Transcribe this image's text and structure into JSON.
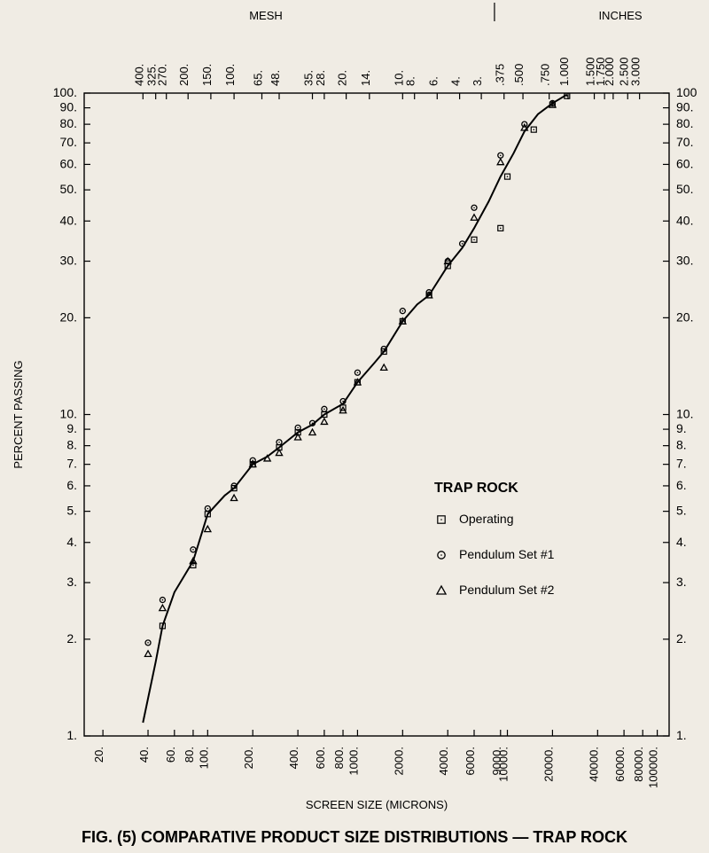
{
  "figure": {
    "caption": "FIG. (5) COMPARATIVE PRODUCT SIZE DISTRIBUTIONS — TRAP ROCK",
    "background_color": "#f0ece4",
    "plot_bg": "#f0ece4",
    "stroke_color": "#000000",
    "xlabel": "SCREEN SIZE (MICRONS)",
    "ylabel": "PERCENT PASSING",
    "top_left_label": "MESH",
    "top_right_label": "INCHES",
    "x_scale": "log",
    "y_scale": "log",
    "xlim": [
      15,
      120000
    ],
    "ylim": [
      1,
      100
    ],
    "x_ticks": [
      20,
      40,
      60,
      80,
      100,
      200,
      400,
      600,
      800,
      1000,
      2000,
      4000,
      6000,
      9000,
      10000,
      20000,
      40000,
      60000,
      80000,
      100000
    ],
    "x_tick_labels": [
      "20.",
      "40.",
      "60.",
      "80.",
      "100.",
      "200.",
      "400.",
      "600.",
      "800.",
      "1000.",
      "2000.",
      "4000.",
      "6000.",
      "9000.",
      "10000.",
      "20000.",
      "40000.",
      "60000.",
      "80000.",
      "100000."
    ],
    "y_ticks_left": [
      1,
      2,
      3,
      4,
      5,
      6,
      7,
      8,
      9,
      10,
      20,
      30,
      40,
      50,
      60,
      70,
      80,
      90,
      100
    ],
    "y_tick_labels_left": [
      "1.",
      "2.",
      "3.",
      "4.",
      "5.",
      "6.",
      "7.",
      "8.",
      "9.",
      "10.",
      "20.",
      "30.",
      "40.",
      "50.",
      "60.",
      "70.",
      "80.",
      "90.",
      "100."
    ],
    "y_ticks_right": [
      1,
      2,
      3,
      4,
      5,
      6,
      7,
      8,
      9,
      10,
      20,
      30,
      40,
      50,
      60,
      70,
      80,
      90,
      100
    ],
    "y_tick_labels_right": [
      "1.",
      "2.",
      "3.",
      "4.",
      "5.",
      "6.",
      "7.",
      "8.",
      "9.",
      "10.",
      "20.",
      "30.",
      "40.",
      "50.",
      "60.",
      "70.",
      "80.",
      "90.",
      "100"
    ],
    "top_mesh_ticks": [
      "400.",
      "325.",
      "270.",
      "200.",
      "150.",
      "100.",
      "65.",
      "48.",
      "35.",
      "28.",
      "20.",
      "14.",
      "10.",
      "8.",
      "6.",
      "4.",
      "3."
    ],
    "top_mesh_positions": [
      37,
      45,
      53,
      74,
      105,
      150,
      230,
      300,
      500,
      600,
      840,
      1200,
      2000,
      2400,
      3400,
      4800,
      6700
    ],
    "top_inches_ticks": [
      ".375",
      ".500",
      ".750",
      "1.000",
      "1.500",
      "1.750",
      "2.000",
      "2.500",
      "3.000"
    ],
    "top_inches_positions": [
      9500,
      12700,
      19000,
      25400,
      38000,
      44500,
      50800,
      63500,
      76200
    ],
    "legend": {
      "title": "TRAP ROCK",
      "items": [
        {
          "marker": "square",
          "label": "Operating"
        },
        {
          "marker": "circle",
          "label": "Pendulum Set #1"
        },
        {
          "marker": "triangle",
          "label": "Pendulum Set #2"
        }
      ]
    },
    "series": {
      "operating": {
        "marker": "square",
        "data": [
          [
            50,
            2.2
          ],
          [
            80,
            3.4
          ],
          [
            100,
            4.9
          ],
          [
            150,
            5.9
          ],
          [
            200,
            7.0
          ],
          [
            300,
            7.9
          ],
          [
            400,
            8.8
          ],
          [
            600,
            10.0
          ],
          [
            800,
            10.5
          ],
          [
            1000,
            12.6
          ],
          [
            1500,
            15.7
          ],
          [
            2000,
            19.5
          ],
          [
            3000,
            23.5
          ],
          [
            4000,
            29.0
          ],
          [
            6000,
            35.0
          ],
          [
            9000,
            38.0
          ],
          [
            10000,
            55.0
          ],
          [
            15000,
            77.0
          ],
          [
            20000,
            92.0
          ],
          [
            25000,
            98.0
          ]
        ]
      },
      "pendulum1": {
        "marker": "circle",
        "data": [
          [
            40,
            1.95
          ],
          [
            50,
            2.65
          ],
          [
            80,
            3.8
          ],
          [
            100,
            5.1
          ],
          [
            150,
            6.0
          ],
          [
            200,
            7.2
          ],
          [
            300,
            8.2
          ],
          [
            400,
            9.1
          ],
          [
            500,
            9.4
          ],
          [
            600,
            10.4
          ],
          [
            800,
            11.0
          ],
          [
            1000,
            13.5
          ],
          [
            1500,
            16.0
          ],
          [
            2000,
            21.0
          ],
          [
            3000,
            24.0
          ],
          [
            4000,
            30.0
          ],
          [
            5000,
            34.0
          ],
          [
            6000,
            44.0
          ],
          [
            9000,
            64.0
          ],
          [
            13000,
            80.0
          ],
          [
            20000,
            93.0
          ]
        ]
      },
      "pendulum2": {
        "marker": "triangle",
        "data": [
          [
            40,
            1.8
          ],
          [
            50,
            2.5
          ],
          [
            80,
            3.5
          ],
          [
            100,
            4.4
          ],
          [
            150,
            5.5
          ],
          [
            200,
            7.0
          ],
          [
            250,
            7.3
          ],
          [
            300,
            7.6
          ],
          [
            400,
            8.5
          ],
          [
            500,
            8.8
          ],
          [
            600,
            9.5
          ],
          [
            800,
            10.3
          ],
          [
            1000,
            12.6
          ],
          [
            1500,
            14.0
          ],
          [
            2000,
            19.5
          ],
          [
            3000,
            23.5
          ],
          [
            4000,
            30.0
          ],
          [
            6000,
            41.0
          ],
          [
            9000,
            61.0
          ],
          [
            13000,
            78.0
          ],
          [
            20000,
            92.0
          ]
        ]
      },
      "curve": {
        "data": [
          [
            37,
            1.1
          ],
          [
            45,
            1.7
          ],
          [
            50,
            2.2
          ],
          [
            60,
            2.8
          ],
          [
            80,
            3.5
          ],
          [
            100,
            4.9
          ],
          [
            130,
            5.6
          ],
          [
            150,
            5.9
          ],
          [
            200,
            7.0
          ],
          [
            250,
            7.4
          ],
          [
            300,
            7.9
          ],
          [
            400,
            8.8
          ],
          [
            500,
            9.3
          ],
          [
            600,
            10.0
          ],
          [
            800,
            10.8
          ],
          [
            1000,
            12.6
          ],
          [
            1300,
            14.5
          ],
          [
            1500,
            15.7
          ],
          [
            2000,
            19.5
          ],
          [
            2500,
            22.0
          ],
          [
            3000,
            23.5
          ],
          [
            4000,
            29.0
          ],
          [
            5000,
            33.0
          ],
          [
            6000,
            38.0
          ],
          [
            7500,
            46.0
          ],
          [
            9000,
            55.0
          ],
          [
            11000,
            65.0
          ],
          [
            13000,
            76.0
          ],
          [
            16000,
            86.0
          ],
          [
            20000,
            93.0
          ],
          [
            25000,
            99.0
          ]
        ]
      }
    },
    "line_width": 2,
    "marker_size": 5,
    "tick_fontsize": 13,
    "label_fontsize": 13,
    "legend_fontsize": 14,
    "caption_fontsize": 18
  }
}
